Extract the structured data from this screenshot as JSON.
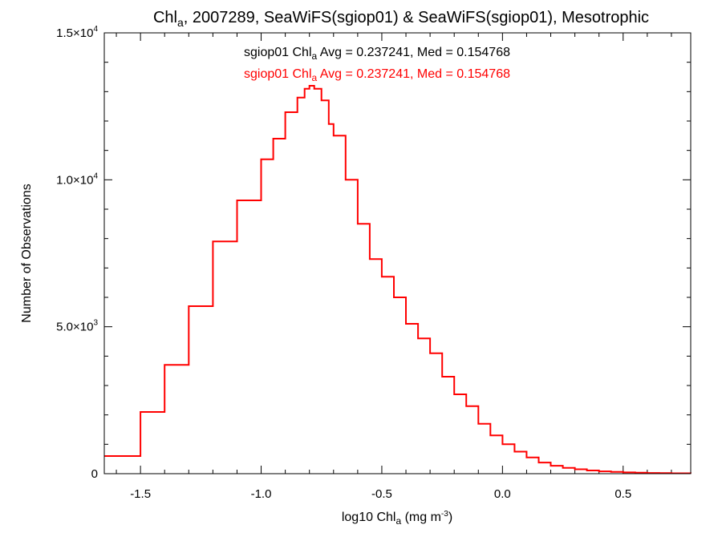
{
  "chart_data": {
    "type": "line",
    "title": {
      "main": "Chl",
      "sub": "a",
      "rest": ", 2007289, SeaWiFS(sgiop01) & SeaWiFS(sgiop01), Mesotrophic"
    },
    "xlabel": {
      "pre": "log10 Chl",
      "sub": "a",
      "mid": " (mg m",
      "sup": "-3",
      "post": ")"
    },
    "ylabel": "Number of Observations",
    "xlim": [
      -1.65,
      0.78
    ],
    "ylim": [
      0,
      15000
    ],
    "x_ticks": [
      {
        "v": -1.5,
        "label": "-1.5"
      },
      {
        "v": -1.0,
        "label": "-1.0"
      },
      {
        "v": -0.5,
        "label": "-0.5"
      },
      {
        "v": 0.0,
        "label": "0.0"
      },
      {
        "v": 0.5,
        "label": "0.5"
      }
    ],
    "y_ticks": [
      {
        "v": 0,
        "mant": "0",
        "exp": ""
      },
      {
        "v": 5000,
        "mant": "5.0×10",
        "exp": "3"
      },
      {
        "v": 10000,
        "mant": "1.0×10",
        "exp": "4"
      },
      {
        "v": 15000,
        "mant": "1.5×10",
        "exp": "4"
      }
    ],
    "annotations": [
      {
        "pre": "sgiop01 Chl",
        "sub": "a",
        "post": " Avg = 0.237241, Med = 0.154768",
        "color": "#000000"
      },
      {
        "pre": "sgiop01 Chl",
        "sub": "a",
        "post": " Avg = 0.237241, Med = 0.154768",
        "color": "#ff0000"
      }
    ],
    "series": [
      {
        "color": "#ff0000",
        "style": "step",
        "points": [
          [
            -1.65,
            600
          ],
          [
            -1.5,
            2100
          ],
          [
            -1.4,
            3700
          ],
          [
            -1.3,
            5700
          ],
          [
            -1.2,
            7900
          ],
          [
            -1.1,
            9300
          ],
          [
            -1.0,
            10700
          ],
          [
            -0.95,
            11400
          ],
          [
            -0.9,
            12300
          ],
          [
            -0.85,
            12800
          ],
          [
            -0.82,
            13100
          ],
          [
            -0.8,
            13200
          ],
          [
            -0.78,
            13100
          ],
          [
            -0.75,
            12700
          ],
          [
            -0.72,
            11900
          ],
          [
            -0.7,
            11500
          ],
          [
            -0.65,
            10000
          ],
          [
            -0.6,
            8500
          ],
          [
            -0.55,
            7300
          ],
          [
            -0.5,
            6700
          ],
          [
            -0.45,
            6000
          ],
          [
            -0.4,
            5100
          ],
          [
            -0.35,
            4600
          ],
          [
            -0.3,
            4100
          ],
          [
            -0.25,
            3300
          ],
          [
            -0.2,
            2700
          ],
          [
            -0.15,
            2300
          ],
          [
            -0.1,
            1700
          ],
          [
            -0.05,
            1300
          ],
          [
            0.0,
            1000
          ],
          [
            0.05,
            750
          ],
          [
            0.1,
            550
          ],
          [
            0.15,
            380
          ],
          [
            0.2,
            270
          ],
          [
            0.25,
            200
          ],
          [
            0.3,
            150
          ],
          [
            0.35,
            110
          ],
          [
            0.4,
            80
          ],
          [
            0.45,
            60
          ],
          [
            0.5,
            45
          ],
          [
            0.55,
            35
          ],
          [
            0.6,
            25
          ],
          [
            0.65,
            20
          ],
          [
            0.7,
            15
          ],
          [
            0.78,
            10
          ]
        ]
      }
    ]
  }
}
